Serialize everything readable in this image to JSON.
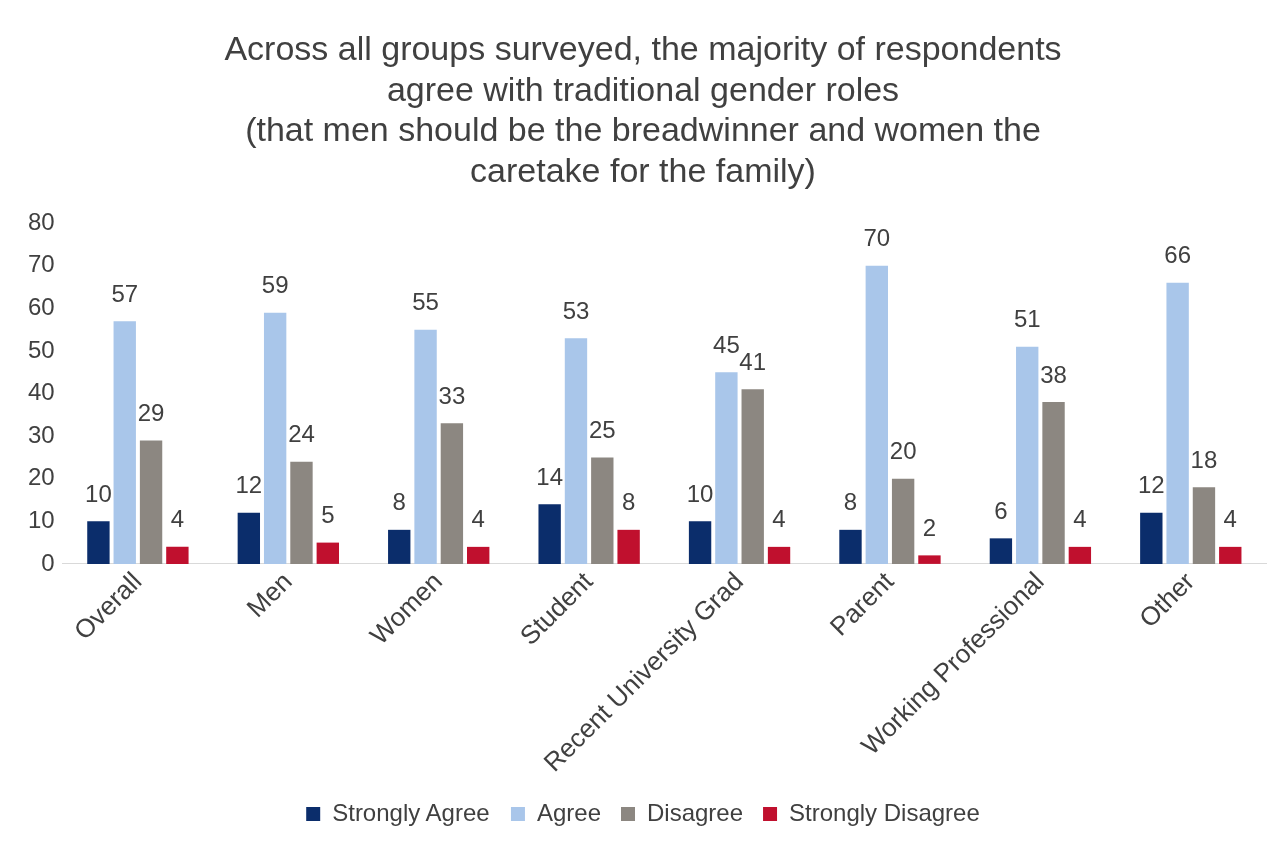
{
  "chart_data": {
    "type": "bar",
    "title": "Across all groups surveyed, the majority of respondents\nagree with traditional gender roles\n(that men should be the breadwinner and women the\ncaretake for the family)",
    "categories": [
      "Overall",
      "Men",
      "Women",
      "Student",
      "Recent University Grad",
      "Parent",
      "Working Professional",
      "Other"
    ],
    "series": [
      {
        "name": "Strongly Agree",
        "color": "#0b2d6b",
        "values": [
          10,
          12,
          8,
          14,
          10,
          8,
          6,
          12
        ]
      },
      {
        "name": "Agree",
        "color": "#a9c6ea",
        "values": [
          57,
          59,
          55,
          53,
          45,
          70,
          51,
          66
        ]
      },
      {
        "name": "Disagree",
        "color": "#8c8781",
        "values": [
          29,
          24,
          33,
          25,
          41,
          20,
          38,
          18
        ]
      },
      {
        "name": "Strongly Disagree",
        "color": "#c0102e",
        "values": [
          4,
          5,
          4,
          8,
          4,
          2,
          4,
          4
        ]
      }
    ],
    "ylim": [
      0,
      80
    ],
    "yticks": [
      0,
      10,
      20,
      30,
      40,
      50,
      60,
      70,
      80
    ],
    "grid": false,
    "legend": "bottom",
    "data_labels": true
  }
}
